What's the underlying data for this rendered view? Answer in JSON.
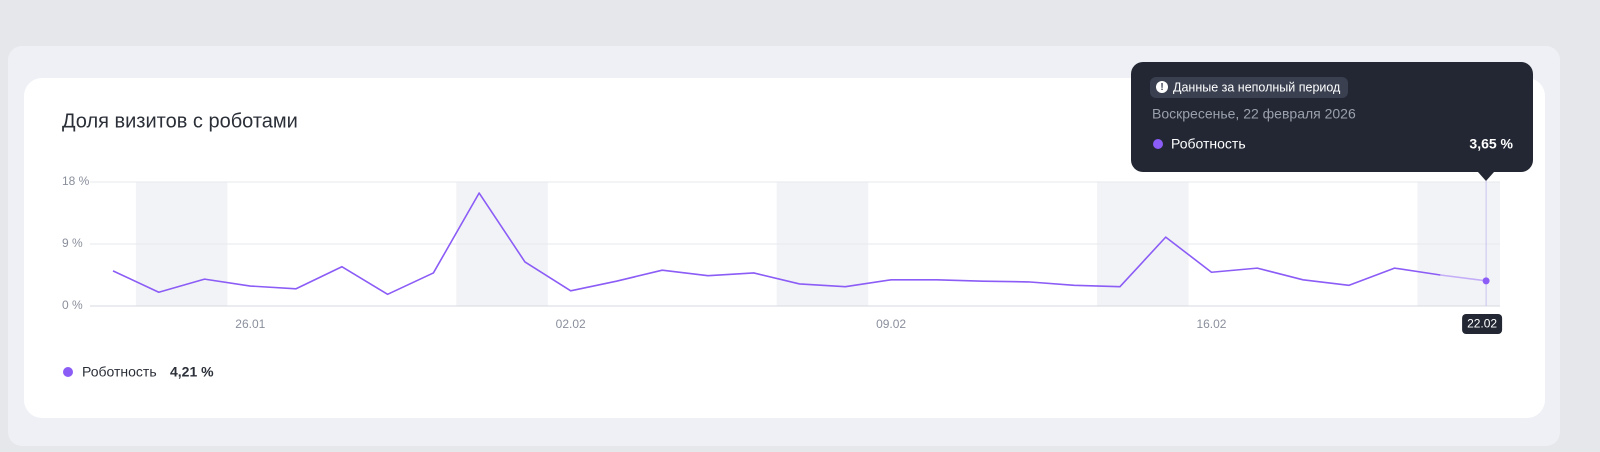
{
  "chart_data": {
    "type": "line",
    "title": "Доля визитов с роботами",
    "categories": [
      null,
      null,
      null,
      "26.01",
      null,
      null,
      null,
      null,
      null,
      null,
      "02.02",
      null,
      null,
      null,
      null,
      null,
      null,
      "09.02",
      null,
      null,
      null,
      null,
      null,
      null,
      "16.02",
      null,
      null,
      null,
      null,
      null,
      "22.02"
    ],
    "series": [
      {
        "name": "Роботность",
        "color": "#8b5cf6",
        "values": [
          5.1,
          2.0,
          3.9,
          2.9,
          2.5,
          5.7,
          1.7,
          4.8,
          16.4,
          6.4,
          2.2,
          3.6,
          5.2,
          4.4,
          4.8,
          3.2,
          2.8,
          3.8,
          3.8,
          3.6,
          3.5,
          3.0,
          2.8,
          10.0,
          4.9,
          5.5,
          3.8,
          3.0,
          5.5,
          4.5,
          3.65
        ],
        "value_labels": [
          null,
          null,
          null,
          null,
          null,
          null,
          null,
          null,
          null,
          null,
          null,
          null,
          null,
          null,
          null,
          null,
          null,
          null,
          null,
          null,
          null,
          null,
          null,
          null,
          null,
          null,
          null,
          null,
          null,
          null,
          "3,65 %"
        ]
      }
    ],
    "ylim": [
      0,
      18
    ],
    "yticks": [
      {
        "value": 0,
        "label": "0 %"
      },
      {
        "value": 9,
        "label": "9 %"
      },
      {
        "value": 18,
        "label": "18 %"
      }
    ],
    "grid": true,
    "legend_total": {
      "value": 4.21,
      "label": "4,21 %"
    },
    "tooltip": {
      "badge": "Данные за неполный период",
      "date": "Воскресенье, 22 февраля 2026"
    }
  }
}
